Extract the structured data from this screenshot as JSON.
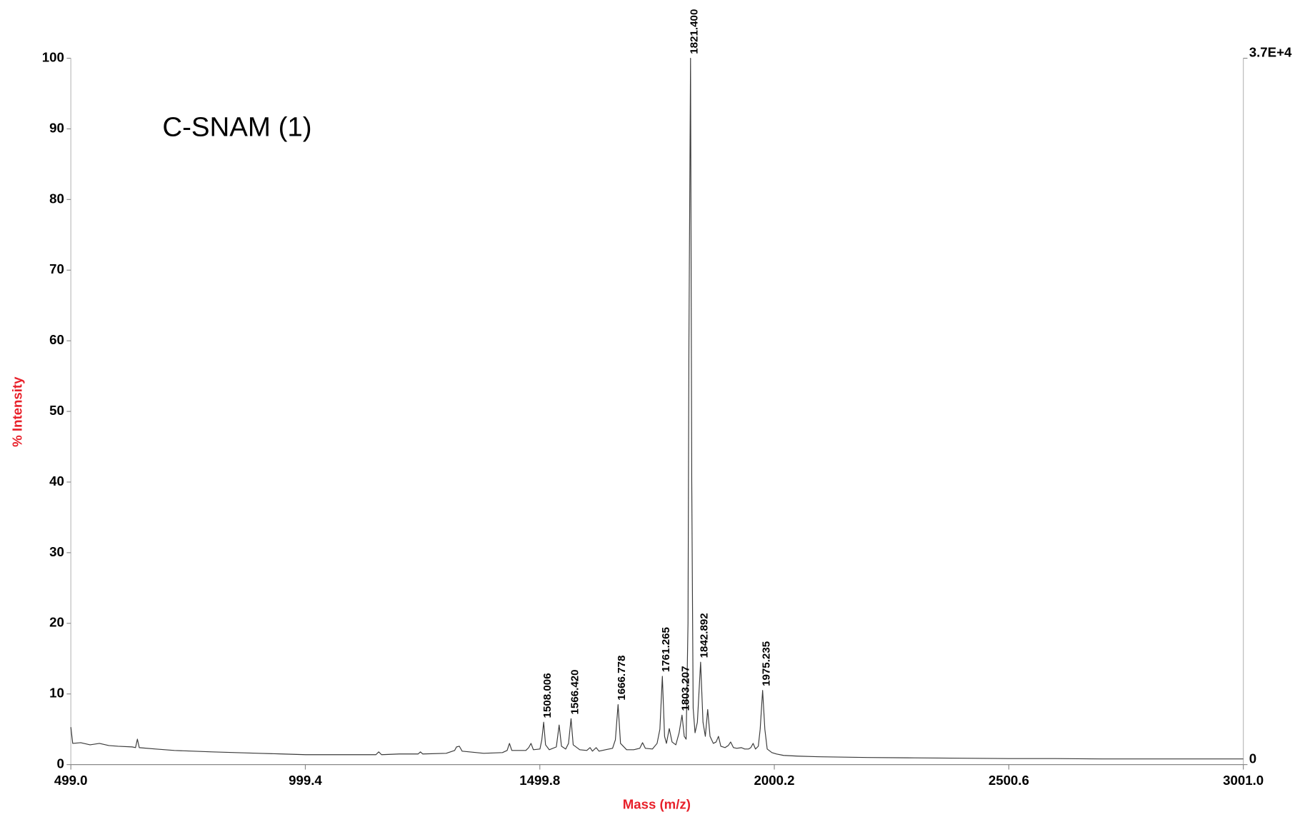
{
  "chart_data": {
    "type": "line",
    "title": "C-SNAM (1)",
    "x_label": "Mass (m/z)",
    "y_label": "% Intensity",
    "axis_label_color": "#e8202a",
    "xlim": [
      499.0,
      3001.0
    ],
    "xticks": [
      {
        "value": 499.0,
        "label": "499.0"
      },
      999.4,
      1499.8,
      2000.2,
      2500.6,
      {
        "value": 3001.0,
        "label": "3001.0"
      }
    ],
    "ylim": [
      0,
      100
    ],
    "yticks": [
      0,
      10,
      20,
      30,
      40,
      50,
      60,
      70,
      80,
      90,
      100
    ],
    "y2lim": [
      0,
      37000
    ],
    "y2ticks": [
      0,
      {
        "value": 37000,
        "label": "3.7E+4"
      }
    ],
    "grid": false,
    "series": [
      {
        "color": "#3a3a3a",
        "x": [
          499,
          503,
          520,
          540,
          560,
          580,
          600,
          630,
          637,
          641,
          645,
          680,
          720,
          760,
          800,
          850,
          900,
          950,
          1000,
          1050,
          1100,
          1150,
          1156,
          1162,
          1200,
          1240,
          1245,
          1250,
          1300,
          1318,
          1322,
          1328,
          1334,
          1380,
          1420,
          1430,
          1435,
          1440,
          1470,
          1476,
          1481,
          1486,
          1500,
          1504,
          1508.006,
          1512,
          1520,
          1535,
          1541,
          1546,
          1555,
          1561,
          1566.42,
          1571,
          1585,
          1600,
          1607,
          1612,
          1620,
          1626,
          1640,
          1655,
          1661,
          1666.778,
          1672,
          1685,
          1700,
          1713,
          1719,
          1725,
          1740,
          1750,
          1756,
          1761.265,
          1766,
          1770,
          1776,
          1782,
          1790,
          1797,
          1803.207,
          1808,
          1812,
          1816,
          1818,
          1821.4,
          1824,
          1827,
          1831,
          1836,
          1842.892,
          1848,
          1853,
          1858,
          1863,
          1870,
          1876,
          1881,
          1886,
          1895,
          1902,
          1907,
          1913,
          1920,
          1930,
          1937,
          1945,
          1950,
          1955,
          1960,
          1966,
          1970,
          1975.235,
          1980,
          1985,
          1995,
          2005,
          2020,
          2050,
          2100,
          2200,
          2300,
          2400,
          2500,
          2600,
          2700,
          2800,
          2900,
          3001
        ],
        "values": [
          5.3,
          3.0,
          3.1,
          2.8,
          3.0,
          2.7,
          2.6,
          2.5,
          2.4,
          3.6,
          2.4,
          2.2,
          2.0,
          1.9,
          1.8,
          1.7,
          1.6,
          1.5,
          1.4,
          1.4,
          1.4,
          1.4,
          1.8,
          1.4,
          1.5,
          1.5,
          1.8,
          1.5,
          1.6,
          2.0,
          2.5,
          2.6,
          1.9,
          1.6,
          1.7,
          2.0,
          3.0,
          2.0,
          2.0,
          2.4,
          3.0,
          2.1,
          2.2,
          3.5,
          6.0,
          2.8,
          2.1,
          2.5,
          5.6,
          2.6,
          2.2,
          3.0,
          6.5,
          2.8,
          2.1,
          2.0,
          2.4,
          1.9,
          2.4,
          1.9,
          2.1,
          2.3,
          3.5,
          8.5,
          3.0,
          2.1,
          2.1,
          2.3,
          3.1,
          2.3,
          2.2,
          3.0,
          5.0,
          12.5,
          4.0,
          3.0,
          5.1,
          3.2,
          2.8,
          4.5,
          7.0,
          4.0,
          3.6,
          20,
          60,
          100,
          40,
          8,
          4.5,
          6,
          14.5,
          6,
          4,
          7.8,
          4,
          3.0,
          3.2,
          4.0,
          2.6,
          2.4,
          2.7,
          3.2,
          2.4,
          2.3,
          2.4,
          2.2,
          2.2,
          2.4,
          3.0,
          2.2,
          2.6,
          5,
          10.5,
          5,
          2.2,
          1.7,
          1.5,
          1.3,
          1.2,
          1.1,
          1.0,
          0.95,
          0.9,
          0.85,
          0.85,
          0.8,
          0.8,
          0.8,
          0.8
        ]
      }
    ],
    "peaks": {
      "x": [
        1508.006,
        1566.42,
        1666.778,
        1761.265,
        1803.207,
        1821.4,
        1842.892,
        1975.235
      ],
      "values": [
        6.0,
        6.5,
        8.5,
        12.5,
        7.0,
        100,
        14.5,
        10.5
      ],
      "labels": [
        "1508.006",
        "1566.420",
        "1666.778",
        "1761.265",
        "1803.207",
        "1821.400",
        "1842.892",
        "1975.235"
      ]
    }
  }
}
